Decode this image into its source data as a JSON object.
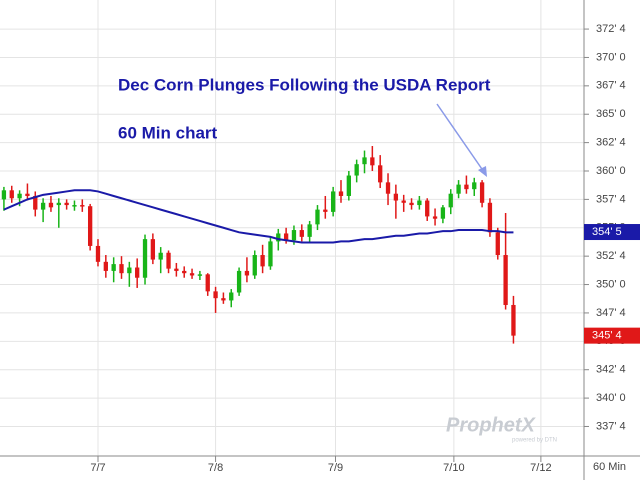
{
  "chart_data": {
    "type": "candlestick",
    "annotations": [
      "Dec Corn Plunges Following the USDA Report",
      "60 Min chart"
    ],
    "watermark": "ProphetX",
    "watermark_sub": "powered by DTN",
    "interval_label": "60 Min",
    "up_color": "#18b418",
    "down_color": "#e01818",
    "x": [
      0,
      1,
      2,
      3,
      4,
      5,
      6,
      7,
      8,
      9,
      10,
      11,
      12,
      13,
      14,
      15,
      16,
      17,
      18,
      19,
      20,
      21,
      22,
      23,
      24,
      25,
      26,
      27,
      28,
      29,
      30,
      31,
      32,
      33,
      34,
      35,
      36,
      37,
      38,
      39,
      40,
      41,
      42,
      43,
      44,
      45,
      46,
      47,
      48,
      49,
      50,
      51,
      52,
      53,
      54,
      55,
      56,
      57,
      58,
      59,
      60,
      61,
      62,
      63,
      64,
      65
    ],
    "open": [
      357.5,
      358.3,
      357.6,
      358.0,
      357.8,
      356.6,
      357.2,
      357.0,
      357.2,
      357.0,
      357.0,
      356.9,
      353.4,
      352.0,
      351.2,
      351.8,
      351.0,
      351.5,
      350.6,
      354.0,
      352.2,
      352.8,
      351.4,
      351.2,
      351.0,
      350.8,
      350.9,
      349.4,
      348.8,
      348.6,
      349.3,
      351.2,
      350.8,
      352.6,
      351.6,
      353.8,
      354.5,
      353.9,
      354.8,
      354.2,
      355.3,
      356.6,
      356.4,
      358.2,
      357.8,
      359.6,
      360.6,
      361.2,
      360.5,
      359.0,
      358.0,
      357.4,
      357.2,
      357.0,
      357.4,
      356.0,
      355.8,
      356.8,
      358.0,
      358.8,
      358.4,
      359.0,
      357.2,
      354.6,
      352.6,
      348.2
    ],
    "high": [
      358.6,
      358.7,
      358.3,
      358.9,
      358.2,
      357.6,
      357.8,
      357.6,
      357.5,
      357.4,
      357.5,
      357.1,
      354.0,
      352.6,
      352.4,
      352.5,
      352.0,
      352.3,
      354.4,
      354.5,
      353.3,
      353.0,
      351.9,
      351.6,
      351.4,
      351.2,
      351.0,
      349.8,
      349.3,
      349.6,
      351.5,
      352.4,
      353.0,
      353.5,
      354.2,
      354.9,
      355.0,
      355.2,
      355.3,
      355.6,
      357.0,
      357.8,
      358.6,
      359.2,
      360.0,
      361.0,
      361.8,
      362.2,
      361.4,
      359.8,
      358.8,
      357.9,
      357.6,
      357.8,
      357.6,
      356.7,
      357.0,
      358.4,
      359.2,
      359.6,
      359.4,
      359.2,
      357.6,
      355.0,
      356.3,
      349.0
    ],
    "low": [
      356.5,
      357.2,
      356.9,
      357.4,
      356.0,
      355.5,
      356.4,
      355.0,
      356.6,
      356.5,
      356.4,
      353.0,
      351.6,
      350.6,
      350.2,
      350.5,
      349.8,
      349.7,
      350.0,
      351.8,
      351.0,
      351.0,
      350.7,
      350.6,
      350.5,
      350.4,
      349.0,
      347.5,
      348.3,
      348.0,
      349.0,
      350.2,
      350.5,
      351.0,
      351.3,
      353.0,
      353.6,
      353.5,
      353.8,
      353.7,
      354.8,
      355.8,
      356.0,
      357.2,
      357.4,
      359.0,
      359.8,
      360.0,
      358.5,
      357.0,
      355.8,
      356.4,
      356.6,
      356.6,
      355.6,
      355.2,
      355.4,
      356.2,
      357.6,
      358.0,
      357.8,
      356.8,
      354.2,
      352.2,
      347.8,
      344.8
    ],
    "close": [
      358.3,
      357.6,
      358.0,
      357.8,
      356.6,
      357.2,
      356.8,
      357.2,
      357.0,
      357.0,
      356.9,
      353.4,
      352.0,
      351.2,
      351.8,
      351.0,
      351.5,
      350.6,
      354.0,
      352.2,
      352.8,
      351.4,
      351.2,
      351.0,
      350.8,
      350.9,
      349.4,
      348.8,
      348.6,
      349.3,
      351.2,
      350.8,
      352.6,
      351.6,
      353.8,
      354.5,
      353.9,
      354.8,
      354.2,
      355.3,
      356.6,
      356.4,
      358.2,
      357.8,
      359.6,
      360.6,
      361.2,
      360.5,
      359.0,
      358.0,
      357.4,
      357.2,
      357.0,
      357.4,
      356.0,
      355.8,
      356.8,
      358.0,
      358.8,
      358.4,
      359.0,
      357.2,
      354.6,
      352.6,
      348.2,
      345.5
    ],
    "moving_average": {
      "color": "#1a1aa8",
      "values": [
        356.6,
        356.9,
        357.2,
        357.5,
        357.7,
        357.9,
        358.0,
        358.1,
        358.2,
        358.3,
        358.3,
        358.3,
        358.2,
        358.0,
        357.8,
        357.6,
        357.4,
        357.2,
        357.0,
        356.8,
        356.6,
        356.4,
        356.2,
        356.0,
        355.8,
        355.6,
        355.4,
        355.2,
        355.0,
        354.8,
        354.6,
        354.5,
        354.4,
        354.3,
        354.2,
        354.0,
        353.9,
        353.8,
        353.7,
        353.7,
        353.7,
        353.7,
        353.7,
        353.8,
        353.8,
        353.9,
        354.0,
        354.0,
        354.1,
        354.2,
        354.3,
        354.3,
        354.4,
        354.5,
        354.5,
        354.6,
        354.7,
        354.7,
        354.8,
        354.8,
        354.8,
        354.8,
        354.7,
        354.7,
        354.6,
        354.6
      ]
    },
    "last_labels": [
      {
        "value": 354.625,
        "label": "354' 5",
        "color": "#1a1aa8"
      },
      {
        "value": 345.5,
        "label": "345' 4",
        "color": "#e01818"
      }
    ],
    "xlim": [
      -0.5,
      74
    ],
    "xticks": [
      {
        "value": 12,
        "label": "7/7"
      },
      {
        "value": 27,
        "label": "7/8"
      },
      {
        "value": 42.3,
        "label": "7/9"
      },
      {
        "value": 57.4,
        "label": "7/10"
      },
      {
        "value": 68.5,
        "label": "7/12"
      }
    ],
    "ylim": [
      334.9,
      375.06
    ],
    "yticks": [
      {
        "value": 337.5,
        "label": "337' 4"
      },
      {
        "value": 340,
        "label": "340' 0"
      },
      {
        "value": 342.5,
        "label": "342' 4"
      },
      {
        "value": 345,
        "label": "345' 0"
      },
      {
        "value": 347.5,
        "label": "347' 4"
      },
      {
        "value": 350,
        "label": "350' 0"
      },
      {
        "value": 352.5,
        "label": "352' 4"
      },
      {
        "value": 355,
        "label": "355' 0"
      },
      {
        "value": 357.5,
        "label": "357' 4"
      },
      {
        "value": 360,
        "label": "360' 0"
      },
      {
        "value": 362.5,
        "label": "362' 4"
      },
      {
        "value": 365,
        "label": "365' 0"
      },
      {
        "value": 367.5,
        "label": "367' 4"
      },
      {
        "value": 370,
        "label": "370' 0"
      },
      {
        "value": 372.5,
        "label": "372' 4"
      }
    ],
    "grid": true
  }
}
